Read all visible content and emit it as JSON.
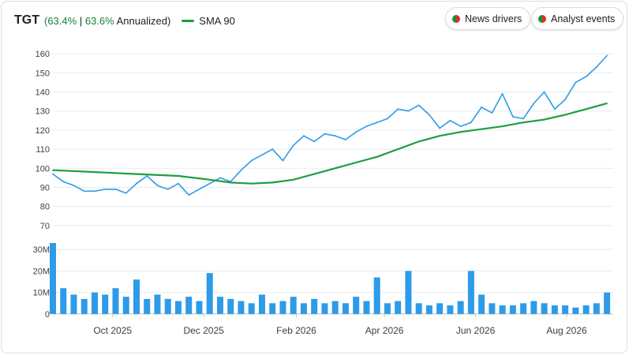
{
  "header": {
    "ticker": "TGT",
    "perf_total": "(63.4%",
    "perf_sep": "|",
    "perf_annual": "63.6%",
    "perf_suffix": "Annualized)",
    "sma_label": "SMA 90"
  },
  "buttons": {
    "news": "News drivers",
    "analyst": "Analyst events"
  },
  "colors": {
    "price": "#2d9be8",
    "sma": "#1e9e3f",
    "volume": "#2d9be8",
    "grid": "#e8eaed"
  },
  "chart_data": {
    "type": "line",
    "price_axis": {
      "ticks": [
        70,
        80,
        90,
        100,
        110,
        120,
        130,
        140,
        150,
        160
      ],
      "ylim": [
        65,
        165
      ]
    },
    "volume_axis": {
      "ticks": [
        0,
        10,
        20,
        30
      ],
      "tick_labels": [
        "0",
        "10M",
        "20M",
        "30M"
      ],
      "ylim": [
        0,
        33
      ]
    },
    "x_ticks": [
      {
        "date": "2025-10-01",
        "label": "Oct 2025"
      },
      {
        "date": "2025-12-01",
        "label": "Dec 2025"
      },
      {
        "date": "2026-02-01",
        "label": "Feb 2026"
      },
      {
        "date": "2026-04-01",
        "label": "Apr 2026"
      },
      {
        "date": "2026-06-01",
        "label": "Jun 2026"
      },
      {
        "date": "2026-08-01",
        "label": "Aug 2026"
      }
    ],
    "xlim": [
      "2025-08-22",
      "2026-08-29"
    ],
    "grid": true,
    "series": [
      {
        "name": "TGT",
        "x": [
          "2025-08-22",
          "2025-08-29",
          "2025-09-05",
          "2025-09-12",
          "2025-09-19",
          "2025-09-26",
          "2025-10-03",
          "2025-10-10",
          "2025-10-17",
          "2025-10-24",
          "2025-10-31",
          "2025-11-07",
          "2025-11-14",
          "2025-11-21",
          "2025-11-28",
          "2025-12-05",
          "2025-12-12",
          "2025-12-19",
          "2025-12-26",
          "2026-01-02",
          "2026-01-09",
          "2026-01-16",
          "2026-01-23",
          "2026-01-30",
          "2026-02-06",
          "2026-02-13",
          "2026-02-20",
          "2026-02-27",
          "2026-03-06",
          "2026-03-13",
          "2026-03-20",
          "2026-03-27",
          "2026-04-03",
          "2026-04-10",
          "2026-04-17",
          "2026-04-24",
          "2026-05-01",
          "2026-05-08",
          "2026-05-15",
          "2026-05-22",
          "2026-05-29",
          "2026-06-05",
          "2026-06-12",
          "2026-06-19",
          "2026-06-26",
          "2026-07-03",
          "2026-07-10",
          "2026-07-17",
          "2026-07-24",
          "2026-07-31",
          "2026-08-07",
          "2026-08-14",
          "2026-08-21",
          "2026-08-28"
        ],
        "values": [
          97,
          93,
          91,
          88,
          88,
          89,
          89,
          87,
          92,
          96,
          91,
          89,
          92,
          86,
          89,
          92,
          95,
          93,
          99,
          104,
          107,
          110,
          104,
          112,
          117,
          114,
          118,
          117,
          115,
          119,
          122,
          124,
          126,
          131,
          130,
          133,
          128,
          121,
          125,
          122,
          124,
          132,
          129,
          139,
          127,
          126,
          134,
          140,
          131,
          136,
          145,
          148,
          153,
          159
        ]
      },
      {
        "name": "SMA 90",
        "x": [
          "2025-08-22",
          "2025-09-19",
          "2025-10-17",
          "2025-11-14",
          "2025-12-05",
          "2025-12-19",
          "2026-01-02",
          "2026-01-16",
          "2026-01-30",
          "2026-02-13",
          "2026-02-27",
          "2026-03-13",
          "2026-03-27",
          "2026-04-10",
          "2026-04-24",
          "2026-05-08",
          "2026-05-22",
          "2026-06-05",
          "2026-06-19",
          "2026-07-03",
          "2026-07-17",
          "2026-07-31",
          "2026-08-14",
          "2026-08-28"
        ],
        "values": [
          99,
          98,
          97,
          96,
          94,
          92.5,
          92,
          92.5,
          94,
          97,
          100,
          103,
          106,
          110,
          114,
          117,
          119,
          120.5,
          122,
          124,
          125.5,
          128,
          131,
          134
        ]
      }
    ],
    "volume": {
      "name": "Volume",
      "x": [
        "2025-08-22",
        "2025-08-29",
        "2025-09-05",
        "2025-09-12",
        "2025-09-19",
        "2025-09-26",
        "2025-10-03",
        "2025-10-10",
        "2025-10-17",
        "2025-10-24",
        "2025-10-31",
        "2025-11-07",
        "2025-11-14",
        "2025-11-21",
        "2025-11-28",
        "2025-12-05",
        "2025-12-12",
        "2025-12-19",
        "2025-12-26",
        "2026-01-02",
        "2026-01-09",
        "2026-01-16",
        "2026-01-23",
        "2026-01-30",
        "2026-02-06",
        "2026-02-13",
        "2026-02-20",
        "2026-02-27",
        "2026-03-06",
        "2026-03-13",
        "2026-03-20",
        "2026-03-27",
        "2026-04-03",
        "2026-04-10",
        "2026-04-17",
        "2026-04-24",
        "2026-05-01",
        "2026-05-08",
        "2026-05-15",
        "2026-05-22",
        "2026-05-29",
        "2026-06-05",
        "2026-06-12",
        "2026-06-19",
        "2026-06-26",
        "2026-07-03",
        "2026-07-10",
        "2026-07-17",
        "2026-07-24",
        "2026-07-31",
        "2026-08-07",
        "2026-08-14",
        "2026-08-21",
        "2026-08-28"
      ],
      "values": [
        33,
        12,
        9,
        7,
        10,
        9,
        12,
        8,
        16,
        7,
        9,
        7,
        6,
        8,
        6,
        19,
        8,
        7,
        6,
        5,
        9,
        5,
        6,
        8,
        5,
        7,
        5,
        6,
        5,
        8,
        6,
        17,
        5,
        6,
        20,
        5,
        4,
        5,
        4,
        6,
        20,
        9,
        5,
        4,
        4,
        5,
        6,
        5,
        4,
        4,
        3,
        4,
        5,
        10
      ]
    }
  }
}
